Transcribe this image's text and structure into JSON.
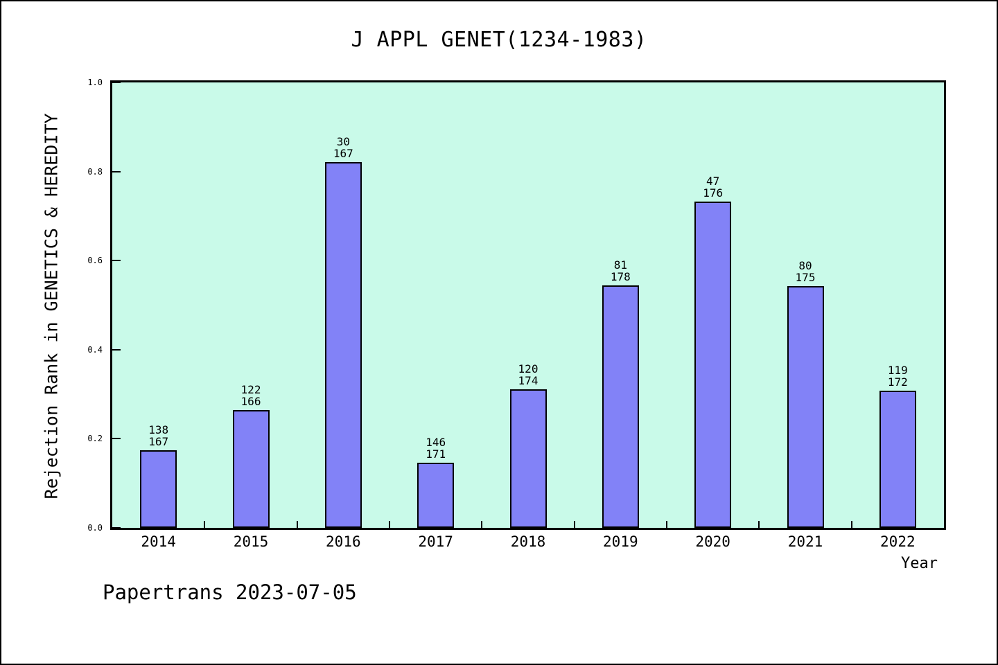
{
  "chart_data": {
    "type": "bar",
    "title": "J APPL GENET(1234-1983)",
    "xlabel": "Year",
    "ylabel": "Rejection Rank in GENETICS & HEREDITY",
    "footer": "Papertrans 2023-07-05",
    "categories": [
      "2014",
      "2015",
      "2016",
      "2017",
      "2018",
      "2019",
      "2020",
      "2021",
      "2022"
    ],
    "values": [
      0.1737,
      0.2651,
      0.8204,
      0.1462,
      0.3103,
      0.5449,
      0.733,
      0.5429,
      0.3081
    ],
    "bar_labels": [
      [
        "138",
        "167"
      ],
      [
        "122",
        "166"
      ],
      [
        "30",
        "167"
      ],
      [
        "146",
        "171"
      ],
      [
        "120",
        "174"
      ],
      [
        "81",
        "178"
      ],
      [
        "47",
        "176"
      ],
      [
        "80",
        "175"
      ],
      [
        "119",
        "172"
      ]
    ],
    "yticks": [
      0.0,
      0.2,
      0.4,
      0.6,
      0.8,
      1.0
    ],
    "ytick_labels": [
      "0.0",
      "0.2",
      "0.4",
      "0.6",
      "0.8",
      "1.0"
    ],
    "ylim": [
      0,
      1
    ],
    "grid": false,
    "legend_position": "none",
    "colors": {
      "bar_fill": "#8282f7",
      "bar_border": "#000000",
      "plot_bg": "#c9fae9",
      "page_bg": "#ffffff",
      "frame": "#000000",
      "text": "#000000"
    }
  }
}
